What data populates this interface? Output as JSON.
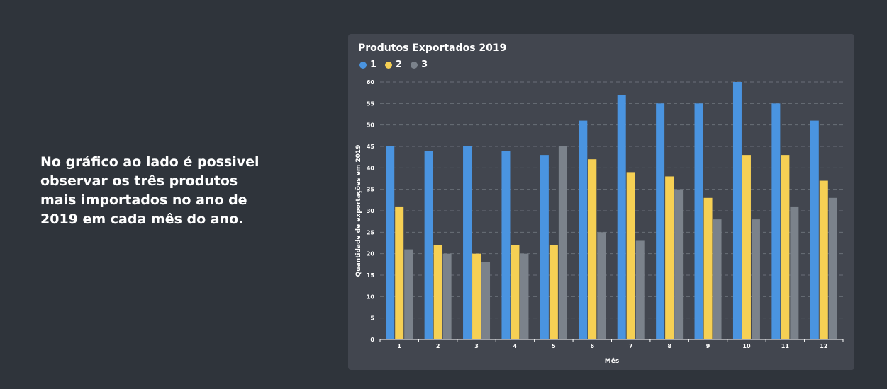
{
  "side_text": "No gráfico ao lado é possivel observar os três produtos mais importados no ano de 2019 em cada mês do ano.",
  "colors": {
    "background": "#2f343b",
    "card": "#42464f",
    "series1": "#4a94e0",
    "series2": "#f6d054",
    "series3": "#7b828b"
  },
  "chart_data": {
    "type": "bar",
    "title": "Produtos Exportados 2019",
    "xlabel": "Mês",
    "ylabel": "Quantidade de exportações em 2019",
    "ylim": [
      0,
      60
    ],
    "yticks": [
      0,
      5,
      10,
      15,
      20,
      25,
      30,
      35,
      40,
      45,
      50,
      55,
      60
    ],
    "grid": "horizontal-dashed",
    "legend_position": "top-left",
    "categories": [
      "1",
      "2",
      "3",
      "4",
      "5",
      "6",
      "7",
      "8",
      "9",
      "10",
      "11",
      "12"
    ],
    "series": [
      {
        "name": "1",
        "color": "#4a94e0",
        "values": [
          45,
          44,
          45,
          44,
          43,
          51,
          57,
          55,
          55,
          60,
          55,
          51
        ]
      },
      {
        "name": "2",
        "color": "#f6d054",
        "values": [
          31,
          22,
          20,
          22,
          22,
          42,
          39,
          38,
          33,
          43,
          43,
          37
        ]
      },
      {
        "name": "3",
        "color": "#7b828b",
        "values": [
          21,
          20,
          18,
          20,
          45,
          25,
          23,
          35,
          28,
          28,
          31,
          33
        ]
      }
    ]
  }
}
